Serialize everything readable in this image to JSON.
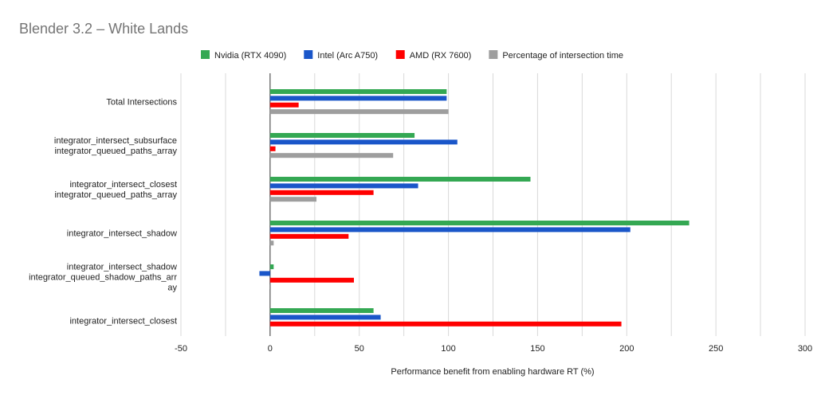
{
  "chart_data": {
    "type": "bar",
    "orientation": "horizontal",
    "title": "Blender 3.2 – White Lands",
    "xlabel": "Performance benefit from enabling hardware RT (%)",
    "ylabel": "",
    "xlim": [
      -50,
      300
    ],
    "xticks": [
      -50,
      0,
      50,
      100,
      150,
      200,
      250,
      300
    ],
    "grid": true,
    "legend_position": "top-center",
    "categories": [
      [
        "Total Intersections"
      ],
      [
        "integrator_intersect_subsurface",
        "integrator_queued_paths_array"
      ],
      [
        "integrator_intersect_closest",
        "integrator_queued_paths_array"
      ],
      [
        "integrator_intersect_shadow"
      ],
      [
        "integrator_intersect_shadow",
        "integrator_queued_shadow_paths_arr",
        "ay"
      ],
      [
        "integrator_intersect_closest"
      ]
    ],
    "series": [
      {
        "name": "Nvidia (RTX 4090)",
        "color": "#34a853",
        "values": [
          99,
          81,
          146,
          235,
          2,
          58
        ]
      },
      {
        "name": "Intel (Arc A750)",
        "color": "#1a56c9",
        "values": [
          99,
          105,
          83,
          202,
          -6,
          62
        ]
      },
      {
        "name": "AMD (RX 7600)",
        "color": "#ff0000",
        "values": [
          16,
          3,
          58,
          44,
          47,
          197
        ]
      },
      {
        "name": "Percentage of intersection time",
        "color": "#9e9e9e",
        "values": [
          100,
          69,
          26,
          2,
          0,
          null
        ]
      }
    ]
  }
}
